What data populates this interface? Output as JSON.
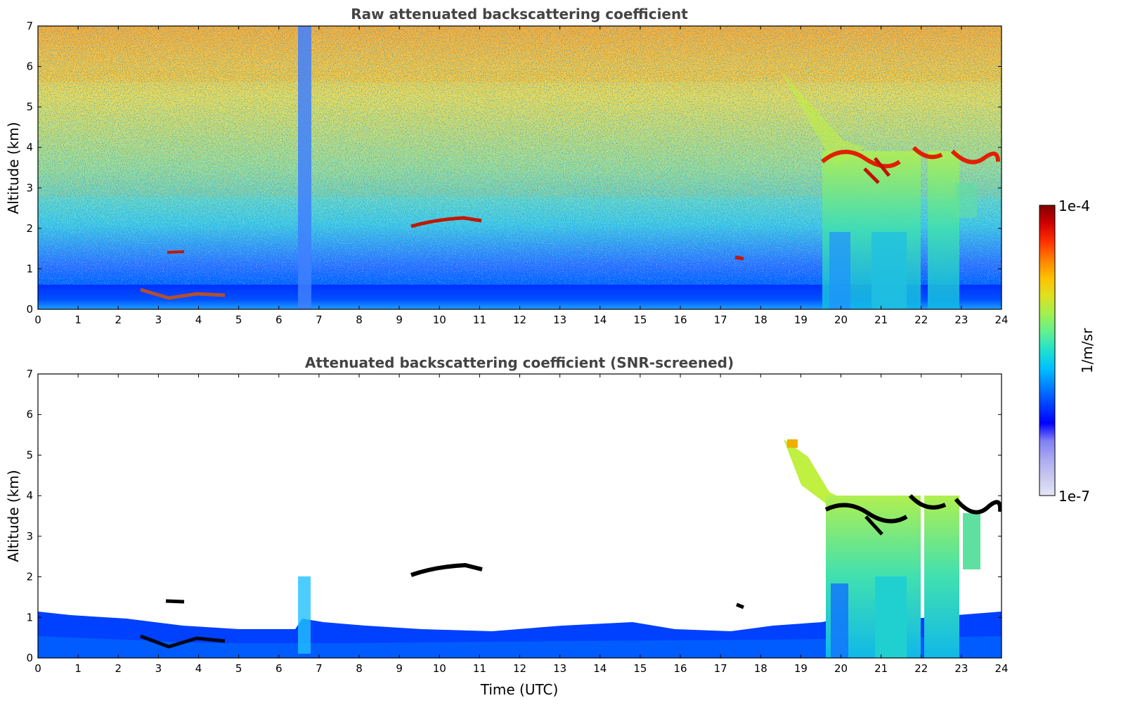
{
  "colors": {
    "colormap": [
      "#e6e6f5",
      "#c8c8f0",
      "#aaaaf0",
      "#8080f5",
      "#0000ff",
      "#0040ff",
      "#0080ff",
      "#00c0ff",
      "#20e0d0",
      "#60f090",
      "#a0f050",
      "#e0e020",
      "#ffc000",
      "#ff8000",
      "#ff3000",
      "#d00000",
      "#800000"
    ],
    "axis": "#000000",
    "title": "#444444"
  },
  "colorbar": {
    "max_label": "1e-4",
    "min_label": "1e-7",
    "unit_label": "1/m/sr"
  },
  "x_axis_label": "Time (UTC)",
  "chart_data": [
    {
      "type": "heatmap",
      "title": "Raw attenuated backscattering coefficient",
      "xlabel": "",
      "ylabel": "Altitude (km)",
      "xlim": [
        0,
        24
      ],
      "ylim": [
        0,
        7
      ],
      "x_ticks": [
        "0",
        "1",
        "2",
        "3",
        "4",
        "5",
        "6",
        "7",
        "8",
        "9",
        "10",
        "11",
        "12",
        "13",
        "14",
        "15",
        "16",
        "17",
        "18",
        "19",
        "20",
        "21",
        "22",
        "23",
        "24"
      ],
      "y_ticks": [
        "0",
        "1",
        "2",
        "3",
        "4",
        "5",
        "6",
        "7"
      ],
      "scale": "log",
      "color_range": [
        "1e-7",
        "1e-4"
      ],
      "features": [
        {
          "name": "boundary layer aerosol",
          "t": [
            0,
            24
          ],
          "z": [
            0,
            0.6
          ]
        },
        {
          "name": "noise gap",
          "t": [
            6.5,
            6.8
          ],
          "z": [
            0,
            7
          ]
        },
        {
          "name": "low cloud",
          "t": [
            2.6,
            4.7
          ],
          "z": [
            0.3,
            0.6
          ]
        },
        {
          "name": "cloud",
          "t": [
            3.2,
            3.6
          ],
          "z": [
            1.4,
            1.45
          ]
        },
        {
          "name": "cloud",
          "t": [
            9.2,
            11.0
          ],
          "z": [
            2.05,
            2.25
          ]
        },
        {
          "name": "cloud",
          "t": [
            17.3,
            17.6
          ],
          "z": [
            1.2,
            1.35
          ]
        },
        {
          "name": "precipitating mid-level cloud",
          "t": [
            18.5,
            24
          ],
          "z": [
            0,
            5.5
          ]
        }
      ]
    },
    {
      "type": "heatmap",
      "title": "Attenuated backscattering coefficient (SNR-screened)",
      "xlabel": "Time (UTC)",
      "ylabel": "Altitude (km)",
      "xlim": [
        0,
        24
      ],
      "ylim": [
        0,
        7
      ],
      "x_ticks": [
        "0",
        "1",
        "2",
        "3",
        "4",
        "5",
        "6",
        "7",
        "8",
        "9",
        "10",
        "11",
        "12",
        "13",
        "14",
        "15",
        "16",
        "17",
        "18",
        "19",
        "20",
        "21",
        "22",
        "23",
        "24"
      ],
      "y_ticks": [
        "0",
        "1",
        "2",
        "3",
        "4",
        "5",
        "6",
        "7"
      ],
      "scale": "log",
      "color_range": [
        "1e-7",
        "1e-4"
      ],
      "features": [
        {
          "name": "boundary layer aerosol",
          "t": [
            0,
            24
          ],
          "z": [
            0,
            1.0
          ]
        },
        {
          "name": "low cloud",
          "t": [
            2.6,
            4.7
          ],
          "z": [
            0.3,
            0.7
          ]
        },
        {
          "name": "cloud",
          "t": [
            3.2,
            3.8
          ],
          "z": [
            1.35,
            1.45
          ]
        },
        {
          "name": "cloud",
          "t": [
            9.2,
            11.0
          ],
          "z": [
            2.05,
            2.3
          ]
        },
        {
          "name": "cloud",
          "t": [
            17.3,
            17.6
          ],
          "z": [
            1.2,
            1.35
          ]
        },
        {
          "name": "precipitating mid-level cloud",
          "t": [
            18.5,
            24
          ],
          "z": [
            0,
            5.5
          ]
        }
      ]
    }
  ]
}
